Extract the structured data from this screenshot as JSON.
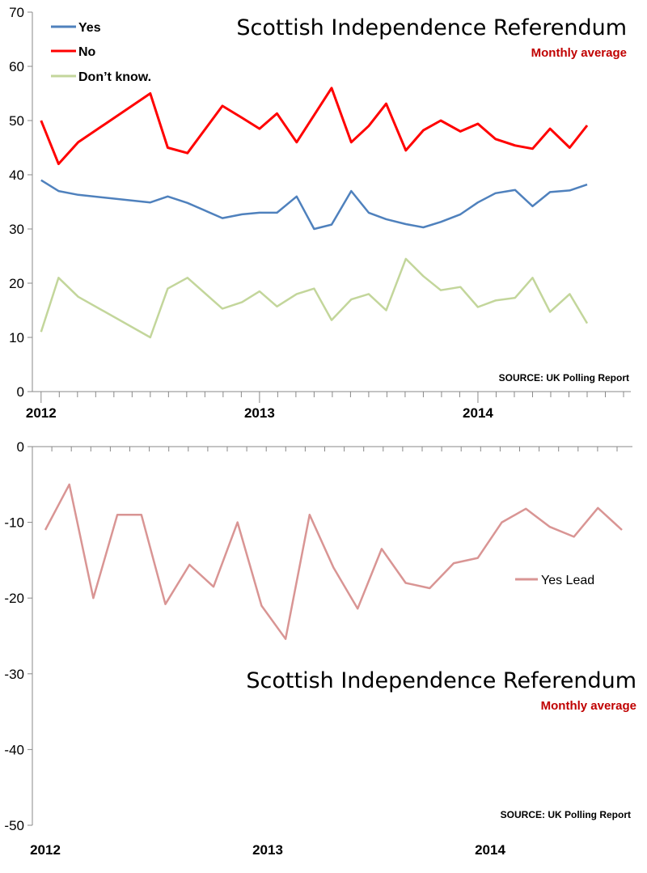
{
  "chart_data": [
    {
      "type": "line",
      "title": "Scottish Independence Referendum",
      "subtitle": "Monthly average",
      "source": "SOURCE: UK Polling Report",
      "ylim": [
        0,
        70
      ],
      "yticks": [
        "0",
        "10",
        "20",
        "30",
        "40",
        "50",
        "60",
        "70"
      ],
      "x_labels": [
        "2012",
        "2013",
        "2014"
      ],
      "legend_position": "top-left",
      "x": [
        2012.0,
        2012.08,
        2012.17,
        2012.5,
        2012.58,
        2012.67,
        2012.83,
        2012.92,
        2013.0,
        2013.08,
        2013.17,
        2013.25,
        2013.33,
        2013.42,
        2013.5,
        2013.58,
        2013.67,
        2013.75,
        2013.83,
        2013.92,
        2014.0,
        2014.08,
        2014.17,
        2014.25,
        2014.33,
        2014.42,
        2014.5,
        2014.58,
        2014.67
      ],
      "series": [
        {
          "name": "Yes",
          "color": "#4f81bd",
          "values": [
            39,
            37,
            36.3,
            34.9,
            36,
            34.8,
            32,
            32.7,
            33,
            33,
            36,
            30,
            30.8,
            37,
            33,
            31.8,
            30.9,
            30.3,
            31.3,
            32.7,
            34.9,
            36.6,
            37.2,
            34.2,
            36.8,
            37.1,
            38.2,
            null,
            null
          ]
        },
        {
          "name": "No",
          "color": "#ff0000",
          "values": [
            50,
            42,
            46,
            55,
            45,
            44,
            52.7,
            50.5,
            48.5,
            51.3,
            46,
            51,
            56,
            46,
            49,
            53.1,
            44.5,
            48.2,
            50,
            48,
            49.4,
            46.6,
            45.4,
            44.8,
            48.5,
            45,
            49.1,
            null,
            null
          ]
        },
        {
          "name": "Don’t know.",
          "color": "#c3d69b",
          "values": [
            11,
            21,
            17.5,
            10,
            19,
            21,
            15.3,
            16.5,
            18.5,
            15.7,
            18,
            19,
            13.2,
            17,
            18,
            15,
            24.5,
            21.3,
            18.7,
            19.3,
            15.6,
            16.8,
            17.3,
            21,
            14.7,
            18,
            12.6,
            null,
            null
          ]
        }
      ]
    },
    {
      "type": "line",
      "title": "Scottish Independence Referendum",
      "subtitle": "Monthly average",
      "source": "SOURCE: UK Polling Report",
      "ylim": [
        -50,
        0
      ],
      "yticks": [
        "0",
        "-10",
        "-20",
        "-30",
        "-40",
        "-50"
      ],
      "x_labels": [
        "2012",
        "2013",
        "2014"
      ],
      "legend_position": "right",
      "series": [
        {
          "name": "Yes Lead",
          "color": "#d99594",
          "values": [
            -11,
            -5,
            -20,
            -9,
            -9,
            -20.8,
            -15.6,
            -18.5,
            -10,
            -21,
            -25.4,
            -9,
            -16,
            -21.4,
            -13.5,
            -18,
            -18.7,
            -15.4,
            -14.7,
            -10,
            -8.2,
            -10.6,
            -11.9,
            -8.1,
            -11
          ]
        }
      ]
    }
  ]
}
